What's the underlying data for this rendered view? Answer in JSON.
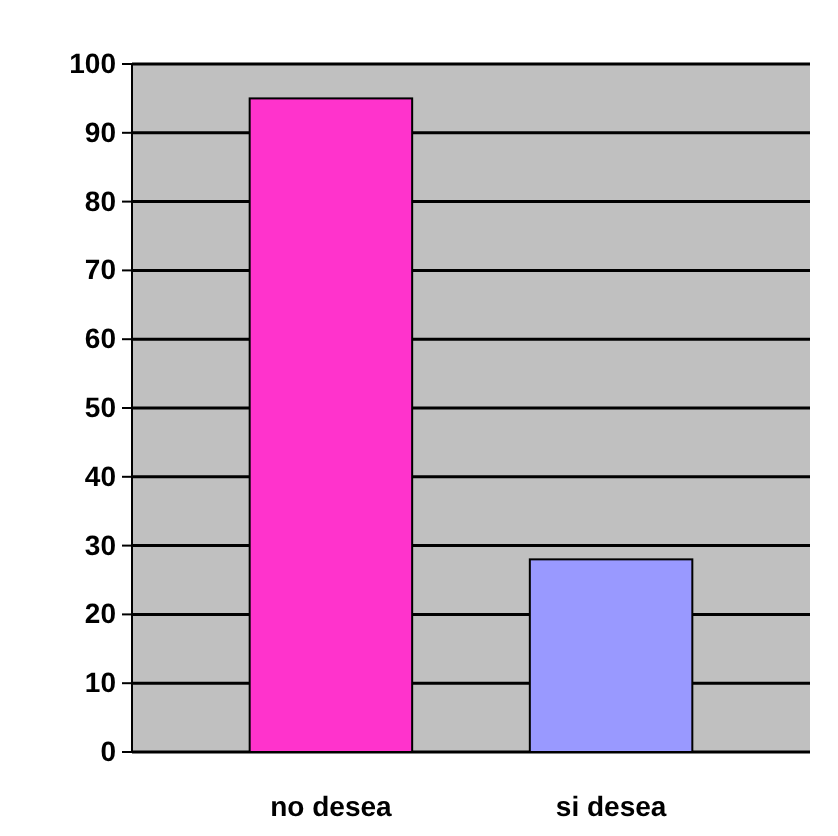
{
  "chart_data": {
    "type": "bar",
    "categories": [
      "no desea",
      "si desea"
    ],
    "values": [
      95,
      28
    ],
    "colors": [
      "#ff33cc",
      "#9999ff"
    ],
    "ylim": [
      0,
      100
    ],
    "yticks": [
      0,
      10,
      20,
      30,
      40,
      50,
      60,
      70,
      80,
      90,
      100
    ],
    "grid": "y"
  }
}
